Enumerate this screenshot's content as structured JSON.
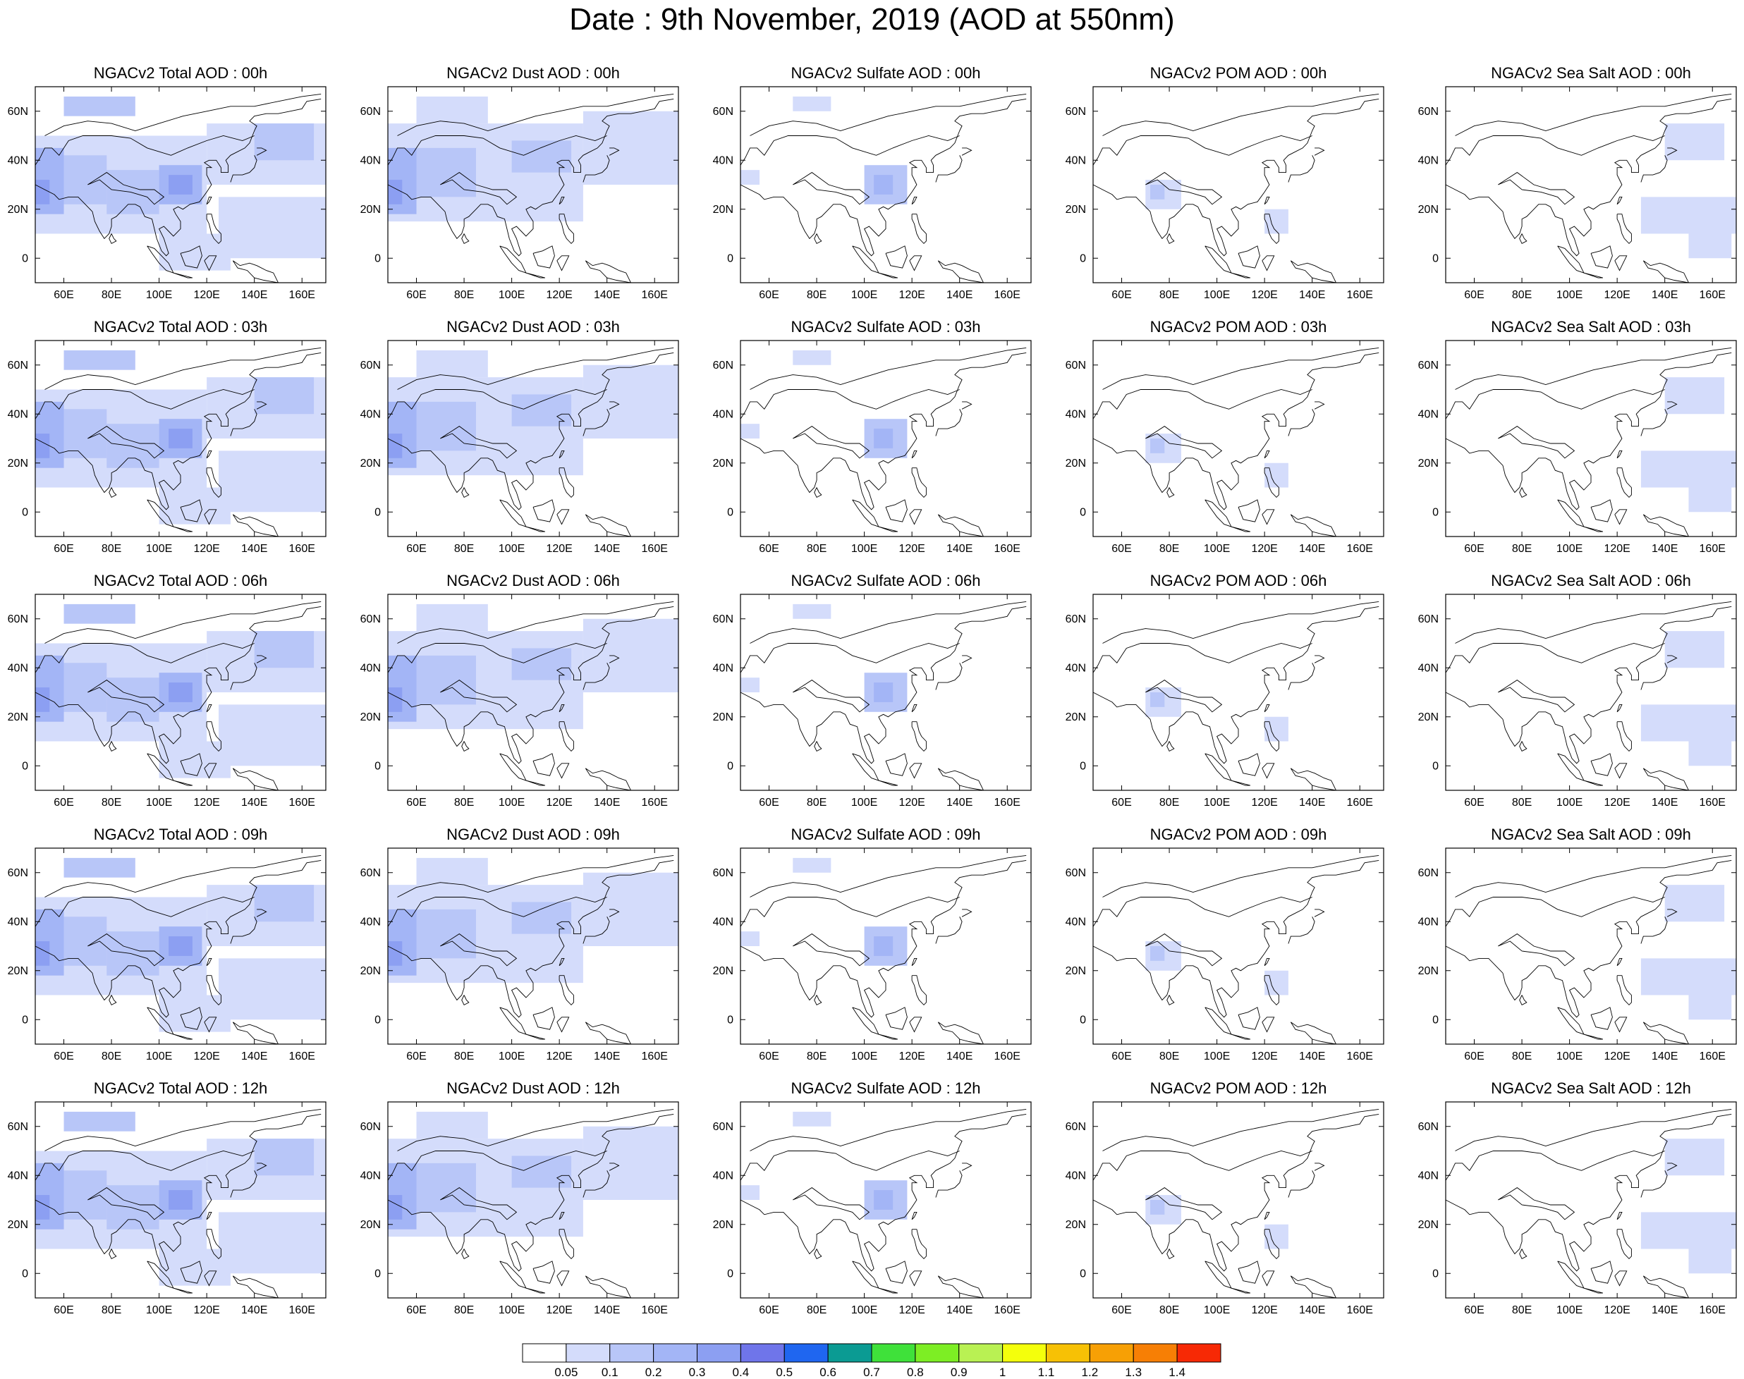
{
  "title": "Date : 9th November, 2019 (AOD at 550nm)",
  "colors": {
    "levels": [
      "#ffffff",
      "#d4dcfb",
      "#b8c6f8",
      "#a3b5f6",
      "#8c9ff2",
      "#6f75ea",
      "#1f66f0",
      "#0b9b93",
      "#3fe13a",
      "#7dee24",
      "#b9f153",
      "#f4ff0c",
      "#f7c105",
      "#f7a005",
      "#f77f05",
      "#f72905"
    ]
  },
  "colorbar": {
    "labels": [
      "0.05",
      "0.1",
      "0.2",
      "0.3",
      "0.4",
      "0.5",
      "0.6",
      "0.7",
      "0.8",
      "0.9",
      "1",
      "1.1",
      "1.2",
      "1.3",
      "1.4"
    ]
  },
  "axes": {
    "x_ticks": [
      "60E",
      "80E",
      "100E",
      "120E",
      "140E",
      "160E"
    ],
    "y_ticks": [
      "60N",
      "40N",
      "20N",
      "0"
    ]
  },
  "chart_data": {
    "type": "heatmap",
    "x_range": [
      48,
      170
    ],
    "y_range": [
      -10,
      70
    ],
    "x_tick_values": [
      60,
      80,
      100,
      120,
      140,
      160
    ],
    "y_tick_values": [
      60,
      40,
      20,
      0
    ],
    "species": [
      "total",
      "dust",
      "sulfate",
      "pom",
      "seasalt"
    ],
    "hours": [
      "00h",
      "03h",
      "06h",
      "09h",
      "12h"
    ],
    "panel_titles": [
      [
        "NGACv2 Total AOD : 00h",
        "NGACv2 Dust AOD : 00h",
        "NGACv2 Sulfate AOD : 00h",
        "NGACv2 POM AOD : 00h",
        "NGACv2 Sea Salt AOD : 00h"
      ],
      [
        "NGACv2 Total AOD : 03h",
        "NGACv2 Dust AOD : 03h",
        "NGACv2 Sulfate AOD : 03h",
        "NGACv2 POM AOD : 03h",
        "NGACv2 Sea Salt AOD : 03h"
      ],
      [
        "NGACv2 Total AOD : 06h",
        "NGACv2 Dust AOD : 06h",
        "NGACv2 Sulfate AOD : 06h",
        "NGACv2 POM AOD : 06h",
        "NGACv2 Sea Salt AOD : 06h"
      ],
      [
        "NGACv2 Total AOD : 09h",
        "NGACv2 Dust AOD : 09h",
        "NGACv2 Sulfate AOD : 09h",
        "NGACv2 POM AOD : 09h",
        "NGACv2 Sea Salt  AOD : 09h"
      ],
      [
        "NGACv2 Total AOD  : 12h",
        "NGACv2 Dust AOD : 12h",
        "NGACv2 Sulfate AOD : 12h",
        "NGACv2 POM  AOD : 12h",
        "NGACv2 Sea Salt  AOD : 12h"
      ]
    ],
    "features": {
      "total": [
        {
          "lon": [
            48,
            60
          ],
          "lat": [
            18,
            45
          ],
          "level": 3
        },
        {
          "lon": [
            48,
            54
          ],
          "lat": [
            22,
            32
          ],
          "level": 4
        },
        {
          "lon": [
            60,
            78
          ],
          "lat": [
            22,
            42
          ],
          "level": 2
        },
        {
          "lon": [
            78,
            100
          ],
          "lat": [
            18,
            36
          ],
          "level": 2
        },
        {
          "lon": [
            48,
            120
          ],
          "lat": [
            10,
            50
          ],
          "level": 1
        },
        {
          "lon": [
            100,
            118
          ],
          "lat": [
            22,
            38
          ],
          "level": 3
        },
        {
          "lon": [
            104,
            114
          ],
          "lat": [
            26,
            34
          ],
          "level": 4
        },
        {
          "lon": [
            120,
            170
          ],
          "lat": [
            30,
            55
          ],
          "level": 1
        },
        {
          "lon": [
            125,
            170
          ],
          "lat": [
            0,
            25
          ],
          "level": 1
        },
        {
          "lon": [
            60,
            90
          ],
          "lat": [
            58,
            66
          ],
          "level": 2
        },
        {
          "lon": [
            100,
            130
          ],
          "lat": [
            -5,
            10
          ],
          "level": 1
        },
        {
          "lon": [
            140,
            165
          ],
          "lat": [
            40,
            55
          ],
          "level": 2
        }
      ],
      "dust": [
        {
          "lon": [
            48,
            60
          ],
          "lat": [
            18,
            45
          ],
          "level": 3
        },
        {
          "lon": [
            48,
            54
          ],
          "lat": [
            22,
            32
          ],
          "level": 4
        },
        {
          "lon": [
            60,
            85
          ],
          "lat": [
            25,
            45
          ],
          "level": 2
        },
        {
          "lon": [
            48,
            130
          ],
          "lat": [
            15,
            55
          ],
          "level": 1
        },
        {
          "lon": [
            100,
            125
          ],
          "lat": [
            35,
            48
          ],
          "level": 2
        },
        {
          "lon": [
            60,
            90
          ],
          "lat": [
            55,
            66
          ],
          "level": 1
        },
        {
          "lon": [
            130,
            170
          ],
          "lat": [
            30,
            60
          ],
          "level": 1
        }
      ],
      "sulfate": [
        {
          "lon": [
            100,
            118
          ],
          "lat": [
            22,
            38
          ],
          "level": 2
        },
        {
          "lon": [
            104,
            112
          ],
          "lat": [
            26,
            34
          ],
          "level": 3
        },
        {
          "lon": [
            70,
            86
          ],
          "lat": [
            60,
            66
          ],
          "level": 1
        },
        {
          "lon": [
            48,
            56
          ],
          "lat": [
            30,
            36
          ],
          "level": 1
        }
      ],
      "pom": [
        {
          "lon": [
            70,
            85
          ],
          "lat": [
            20,
            32
          ],
          "level": 1
        },
        {
          "lon": [
            72,
            78
          ],
          "lat": [
            24,
            30
          ],
          "level": 2
        },
        {
          "lon": [
            120,
            130
          ],
          "lat": [
            10,
            20
          ],
          "level": 1
        }
      ],
      "seasalt": [
        {
          "lon": [
            130,
            170
          ],
          "lat": [
            10,
            25
          ],
          "level": 1
        },
        {
          "lon": [
            140,
            165
          ],
          "lat": [
            40,
            55
          ],
          "level": 1
        },
        {
          "lon": [
            150,
            168
          ],
          "lat": [
            0,
            10
          ],
          "level": 1
        }
      ]
    }
  }
}
